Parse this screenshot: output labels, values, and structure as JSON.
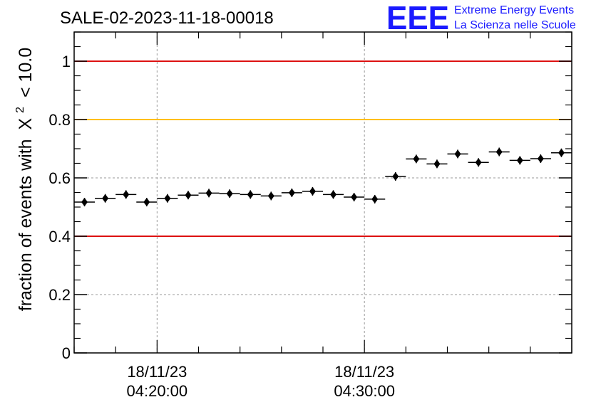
{
  "chart_data": {
    "type": "scatter",
    "title": "SALE-02-2023-11-18-00018",
    "ylabel_prefix": "fraction of events with",
    "ylabel_symbol": "X",
    "ylabel_exponent": "2",
    "ylabel_suffix": "< 10.0",
    "xlabel": "",
    "ylim": [
      0,
      1.1
    ],
    "xlim": [
      0,
      24
    ],
    "y_ticks": [
      {
        "value": 0,
        "label": "0"
      },
      {
        "value": 0.2,
        "label": "0.2"
      },
      {
        "value": 0.4,
        "label": "0.4"
      },
      {
        "value": 0.6,
        "label": "0.6"
      },
      {
        "value": 0.8,
        "label": "0.8"
      },
      {
        "value": 1.0,
        "label": "1"
      }
    ],
    "x_ticks": [
      {
        "value": 4,
        "date": "18/11/23",
        "time": "04:20:00"
      },
      {
        "value": 14,
        "date": "18/11/23",
        "time": "04:30:00"
      }
    ],
    "x_grid": [
      4,
      14
    ],
    "y_grid": [
      0.2,
      0.6
    ],
    "reference_lines": [
      {
        "y": 1.0,
        "color": "#dd1111"
      },
      {
        "y": 0.8,
        "color": "#ffbf00"
      },
      {
        "y": 0.4,
        "color": "#dd1111"
      }
    ],
    "series": [
      {
        "name": "fraction",
        "x": [
          0.5,
          1.5,
          2.5,
          3.5,
          4.5,
          5.5,
          6.5,
          7.5,
          8.5,
          9.5,
          10.5,
          11.5,
          12.5,
          13.5,
          14.5,
          15.5,
          16.5,
          17.5,
          18.5,
          19.5,
          20.5,
          21.5,
          22.5,
          23.5
        ],
        "y": [
          0.517,
          0.53,
          0.543,
          0.517,
          0.53,
          0.541,
          0.548,
          0.546,
          0.543,
          0.538,
          0.549,
          0.554,
          0.543,
          0.534,
          0.527,
          0.605,
          0.665,
          0.648,
          0.682,
          0.653,
          0.689,
          0.66,
          0.666,
          0.686
        ]
      }
    ]
  },
  "logo": {
    "letters": "EEE",
    "line1": "Extreme Energy Events",
    "line2": "La Scienza nelle Scuole",
    "color": "#1a1aff"
  }
}
